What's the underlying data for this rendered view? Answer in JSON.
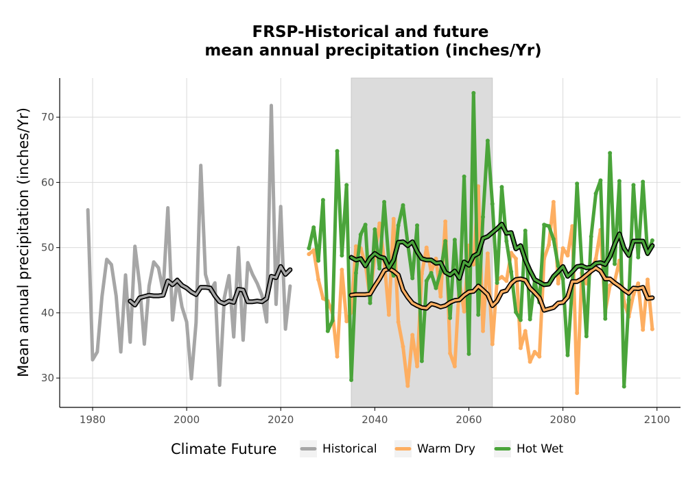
{
  "chart_data": {
    "type": "line",
    "title": [
      "FRSP-Historical and future",
      "mean annual precipitation (inches/Yr)"
    ],
    "ylabel": "Mean annual precipitation (inches/Yr)",
    "xlabel": "",
    "xlim": [
      1973,
      2105
    ],
    "ylim": [
      25.5,
      76
    ],
    "x_ticks": [
      1980,
      2000,
      2020,
      2040,
      2060,
      2080,
      2100
    ],
    "y_ticks": [
      30,
      40,
      50,
      60,
      70
    ],
    "grid": true,
    "shaded_period": [
      2035,
      2065
    ],
    "shade_color": "#dcdcdc",
    "legend": {
      "title": "Climate Future",
      "position": "bottom",
      "entries": [
        "Historical",
        "Warm Dry",
        "Hot Wet"
      ]
    },
    "series": [
      {
        "name": "Historical",
        "color": "#a6a6a6",
        "x": [
          1979,
          1980,
          1981,
          1982,
          1983,
          1984,
          1985,
          1986,
          1987,
          1988,
          1989,
          1990,
          1991,
          1992,
          1993,
          1994,
          1995,
          1996,
          1997,
          1998,
          1999,
          2000,
          2001,
          2002,
          2003,
          2004,
          2005,
          2006,
          2007,
          2008,
          2009,
          2010,
          2011,
          2012,
          2013,
          2014,
          2015,
          2016,
          2017,
          2018,
          2019,
          2020,
          2021,
          2022
        ],
        "values": [
          55.8,
          32.8,
          34.0,
          42.5,
          48.2,
          47.4,
          42.6,
          34.0,
          45.8,
          35.5,
          50.2,
          44.3,
          35.2,
          44.1,
          47.8,
          46.9,
          43.3,
          56.1,
          38.9,
          45.2,
          40.9,
          38.6,
          29.9,
          38.5,
          62.6,
          45.9,
          43.3,
          44.6,
          28.9,
          42.3,
          45.7,
          36.3,
          50.0,
          35.8,
          47.7,
          45.9,
          44.5,
          42.7,
          38.6,
          71.8,
          41.3,
          56.3,
          37.5,
          44.1
        ]
      },
      {
        "name": "Warm Dry",
        "color": "#fdae61",
        "x": [
          2026,
          2027,
          2028,
          2029,
          2030,
          2031,
          2032,
          2033,
          2034,
          2035,
          2036,
          2037,
          2038,
          2039,
          2040,
          2041,
          2042,
          2043,
          2044,
          2045,
          2046,
          2047,
          2048,
          2049,
          2050,
          2051,
          2052,
          2053,
          2054,
          2055,
          2056,
          2057,
          2058,
          2059,
          2060,
          2061,
          2062,
          2063,
          2064,
          2065,
          2066,
          2067,
          2068,
          2069,
          2070,
          2071,
          2072,
          2073,
          2074,
          2075,
          2076,
          2077,
          2078,
          2079,
          2080,
          2081,
          2082,
          2083,
          2084,
          2085,
          2086,
          2087,
          2088,
          2089,
          2090,
          2091,
          2092,
          2093,
          2094,
          2095,
          2096,
          2097,
          2098,
          2099
        ],
        "values": [
          49.0,
          49.6,
          45.1,
          42.2,
          41.8,
          40.0,
          33.3,
          46.6,
          38.7,
          40.1,
          50.2,
          49.9,
          47.5,
          42.2,
          48.9,
          53.7,
          48.0,
          39.7,
          54.4,
          38.6,
          34.8,
          28.8,
          36.6,
          31.8,
          46.0,
          50.0,
          46.3,
          48.3,
          42.5,
          54.0,
          33.8,
          31.8,
          44.8,
          40.2,
          50.3,
          47.4,
          59.4,
          37.2,
          49.1,
          35.2,
          45.0,
          45.5,
          44.9,
          49.2,
          48.3,
          34.6,
          37.2,
          32.5,
          34.0,
          33.3,
          48.3,
          50.4,
          57.0,
          44.5,
          49.9,
          48.8,
          53.3,
          27.7,
          46.1,
          44.5,
          46.4,
          48.3,
          52.7,
          40.2,
          44.2,
          44.8,
          48.0,
          41.7,
          39.4,
          42.8,
          44.5,
          37.4,
          45.1,
          37.5
        ]
      },
      {
        "name": "Hot Wet",
        "color": "#4aa43a",
        "x": [
          2026,
          2027,
          2028,
          2029,
          2030,
          2031,
          2032,
          2033,
          2034,
          2035,
          2036,
          2037,
          2038,
          2039,
          2040,
          2041,
          2042,
          2043,
          2044,
          2045,
          2046,
          2047,
          2048,
          2049,
          2050,
          2051,
          2052,
          2053,
          2054,
          2055,
          2056,
          2057,
          2058,
          2059,
          2060,
          2061,
          2062,
          2063,
          2064,
          2065,
          2066,
          2067,
          2068,
          2069,
          2070,
          2071,
          2072,
          2073,
          2074,
          2075,
          2076,
          2077,
          2078,
          2079,
          2080,
          2081,
          2082,
          2083,
          2084,
          2085,
          2086,
          2087,
          2088,
          2089,
          2090,
          2091,
          2092,
          2093,
          2094,
          2095,
          2096,
          2097,
          2098,
          2099
        ],
        "values": [
          49.9,
          53.1,
          48.0,
          57.3,
          37.2,
          38.8,
          64.8,
          48.8,
          59.6,
          29.7,
          46.1,
          52.0,
          53.5,
          41.5,
          52.8,
          46.8,
          57.0,
          47.8,
          45.7,
          53.4,
          56.5,
          50.7,
          45.3,
          53.4,
          32.6,
          44.9,
          46.1,
          43.8,
          46.3,
          51.0,
          39.2,
          51.2,
          41.9,
          60.9,
          33.7,
          73.7,
          39.7,
          54.7,
          66.4,
          56.7,
          44.6,
          59.3,
          51.0,
          46.3,
          40.1,
          38.9,
          52.6,
          39.0,
          45.0,
          41.6,
          53.5,
          53.3,
          51.3,
          47.2,
          45.2,
          33.5,
          44.3,
          59.8,
          47.5,
          36.4,
          51.7,
          58.3,
          60.3,
          39.1,
          64.5,
          47.5,
          60.2,
          28.7,
          42.0,
          59.6,
          48.5,
          60.1,
          49.0,
          51.1
        ]
      },
      {
        "name": "",
        "color": "#a6a6a6",
        "smoothed": true,
        "x": [
          1988,
          1989,
          1990,
          1991,
          1992,
          1993,
          1994,
          1995,
          1996,
          1997,
          1998,
          1999,
          2000,
          2001,
          2002,
          2003,
          2004,
          2005,
          2006,
          2007,
          2008,
          2009,
          2010,
          2011,
          2012,
          2013,
          2014,
          2015,
          2016,
          2017,
          2018,
          2019,
          2020,
          2021,
          2022
        ],
        "values": [
          41.8,
          41.2,
          42.3,
          42.5,
          42.7,
          42.6,
          42.6,
          42.7,
          44.9,
          44.3,
          45.0,
          44.2,
          43.8,
          43.2,
          42.8,
          43.9,
          43.9,
          43.8,
          42.6,
          41.7,
          41.4,
          41.8,
          41.6,
          43.6,
          43.5,
          41.7,
          41.7,
          41.8,
          41.7,
          42.2,
          45.6,
          45.4,
          47.1,
          45.9,
          46.6
        ]
      },
      {
        "name": "",
        "color": "#fdae61",
        "smoothed": true,
        "x": [
          2035,
          2036,
          2037,
          2038,
          2039,
          2040,
          2041,
          2042,
          2043,
          2044,
          2045,
          2046,
          2047,
          2048,
          2049,
          2050,
          2051,
          2052,
          2053,
          2054,
          2055,
          2056,
          2057,
          2058,
          2059,
          2060,
          2061,
          2062,
          2063,
          2064,
          2065,
          2066,
          2067,
          2068,
          2069,
          2070,
          2071,
          2072,
          2073,
          2074,
          2075,
          2076,
          2077,
          2078,
          2079,
          2080,
          2081,
          2082,
          2083,
          2084,
          2085,
          2086,
          2087,
          2088,
          2089,
          2090,
          2091,
          2092,
          2093,
          2094,
          2095,
          2096,
          2097,
          2098,
          2099
        ],
        "values": [
          42.7,
          42.8,
          42.8,
          42.8,
          42.9,
          44.1,
          45.2,
          46.5,
          46.8,
          46.4,
          45.8,
          43.5,
          42.4,
          41.5,
          41.1,
          40.8,
          40.7,
          41.4,
          41.2,
          40.9,
          41.1,
          41.6,
          41.9,
          42.0,
          42.7,
          43.2,
          43.3,
          44.1,
          43.5,
          42.8,
          41.1,
          41.8,
          43.2,
          43.4,
          44.5,
          45.1,
          45.2,
          45.0,
          43.8,
          43.1,
          42.3,
          40.4,
          40.6,
          40.8,
          41.5,
          41.6,
          42.4,
          44.8,
          44.8,
          45.2,
          45.8,
          46.4,
          46.9,
          46.4,
          45.2,
          45.2,
          44.6,
          44.1,
          43.5,
          43.0,
          43.8,
          43.7,
          43.9,
          42.2,
          42.3
        ]
      },
      {
        "name": "",
        "color": "#4aa43a",
        "smoothed": true,
        "x": [
          2035,
          2036,
          2037,
          2038,
          2039,
          2040,
          2041,
          2042,
          2043,
          2044,
          2045,
          2046,
          2047,
          2048,
          2049,
          2050,
          2051,
          2052,
          2053,
          2054,
          2055,
          2056,
          2057,
          2058,
          2059,
          2060,
          2061,
          2062,
          2063,
          2064,
          2065,
          2066,
          2067,
          2068,
          2069,
          2070,
          2071,
          2072,
          2073,
          2074,
          2075,
          2076,
          2077,
          2078,
          2079,
          2080,
          2081,
          2082,
          2083,
          2084,
          2085,
          2086,
          2087,
          2088,
          2089,
          2090,
          2091,
          2092,
          2093,
          2094,
          2095,
          2096,
          2097,
          2098,
          2099
        ],
        "values": [
          48.5,
          48.1,
          48.3,
          47.2,
          48.4,
          49.1,
          48.6,
          48.4,
          46.9,
          48.1,
          50.8,
          50.9,
          50.3,
          50.9,
          49.4,
          48.3,
          48.1,
          48.1,
          47.6,
          47.7,
          46.2,
          45.8,
          46.4,
          45.3,
          47.8,
          47.3,
          48.7,
          49.1,
          51.4,
          51.7,
          52.3,
          52.9,
          53.6,
          52.2,
          52.3,
          49.8,
          50.3,
          48.1,
          46.5,
          45.1,
          44.7,
          44.3,
          44.4,
          45.6,
          46.3,
          47.1,
          45.6,
          46.3,
          47.1,
          47.2,
          46.9,
          47.0,
          47.6,
          47.7,
          47.4,
          48.6,
          50.5,
          52.1,
          49.9,
          48.8,
          51.0,
          51.0,
          51.0,
          49.1,
          50.3
        ]
      }
    ]
  }
}
